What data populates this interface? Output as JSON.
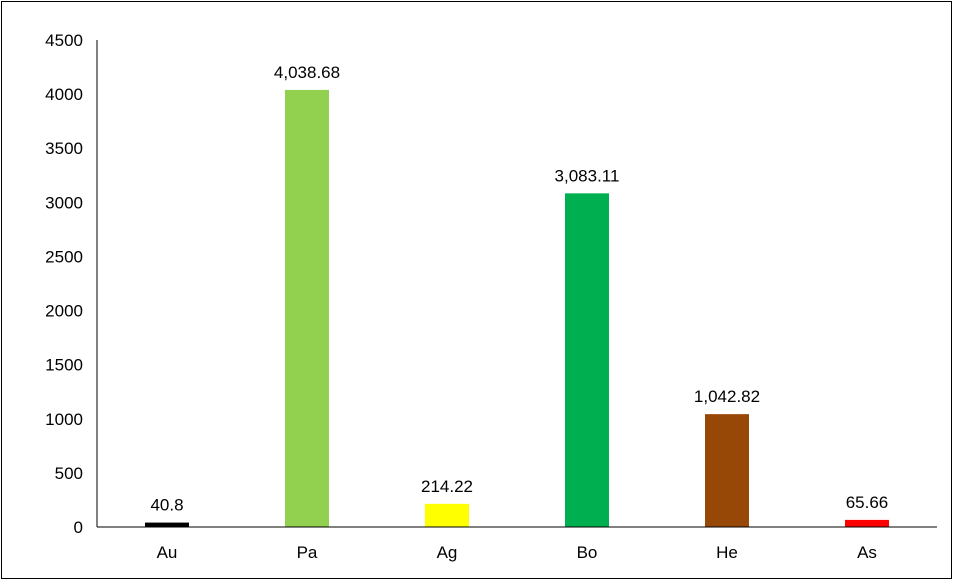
{
  "chart_data": {
    "type": "bar",
    "categories": [
      "Au",
      "Pa",
      "Ag",
      "Bo",
      "He",
      "As"
    ],
    "values": [
      40.8,
      4038.68,
      214.22,
      3083.11,
      1042.82,
      65.66
    ],
    "data_labels": [
      "40.8",
      "4,038.68",
      "214.22",
      "3,083.11",
      "1,042.82",
      "65.66"
    ],
    "colors": [
      "#000000",
      "#92d050",
      "#ffff00",
      "#00b050",
      "#974706",
      "#ff0000"
    ],
    "yticks": [
      "0",
      "500",
      "1000",
      "1500",
      "2000",
      "2500",
      "3000",
      "3500",
      "4500"
    ],
    "ytick_values": [
      0,
      500,
      1000,
      1500,
      2000,
      2500,
      3000,
      3500,
      4500
    ],
    "ytick_4000": "4000",
    "ylim": [
      0,
      4500
    ],
    "grid": false,
    "legend": "none",
    "title": "",
    "xlabel": "",
    "ylabel": ""
  }
}
